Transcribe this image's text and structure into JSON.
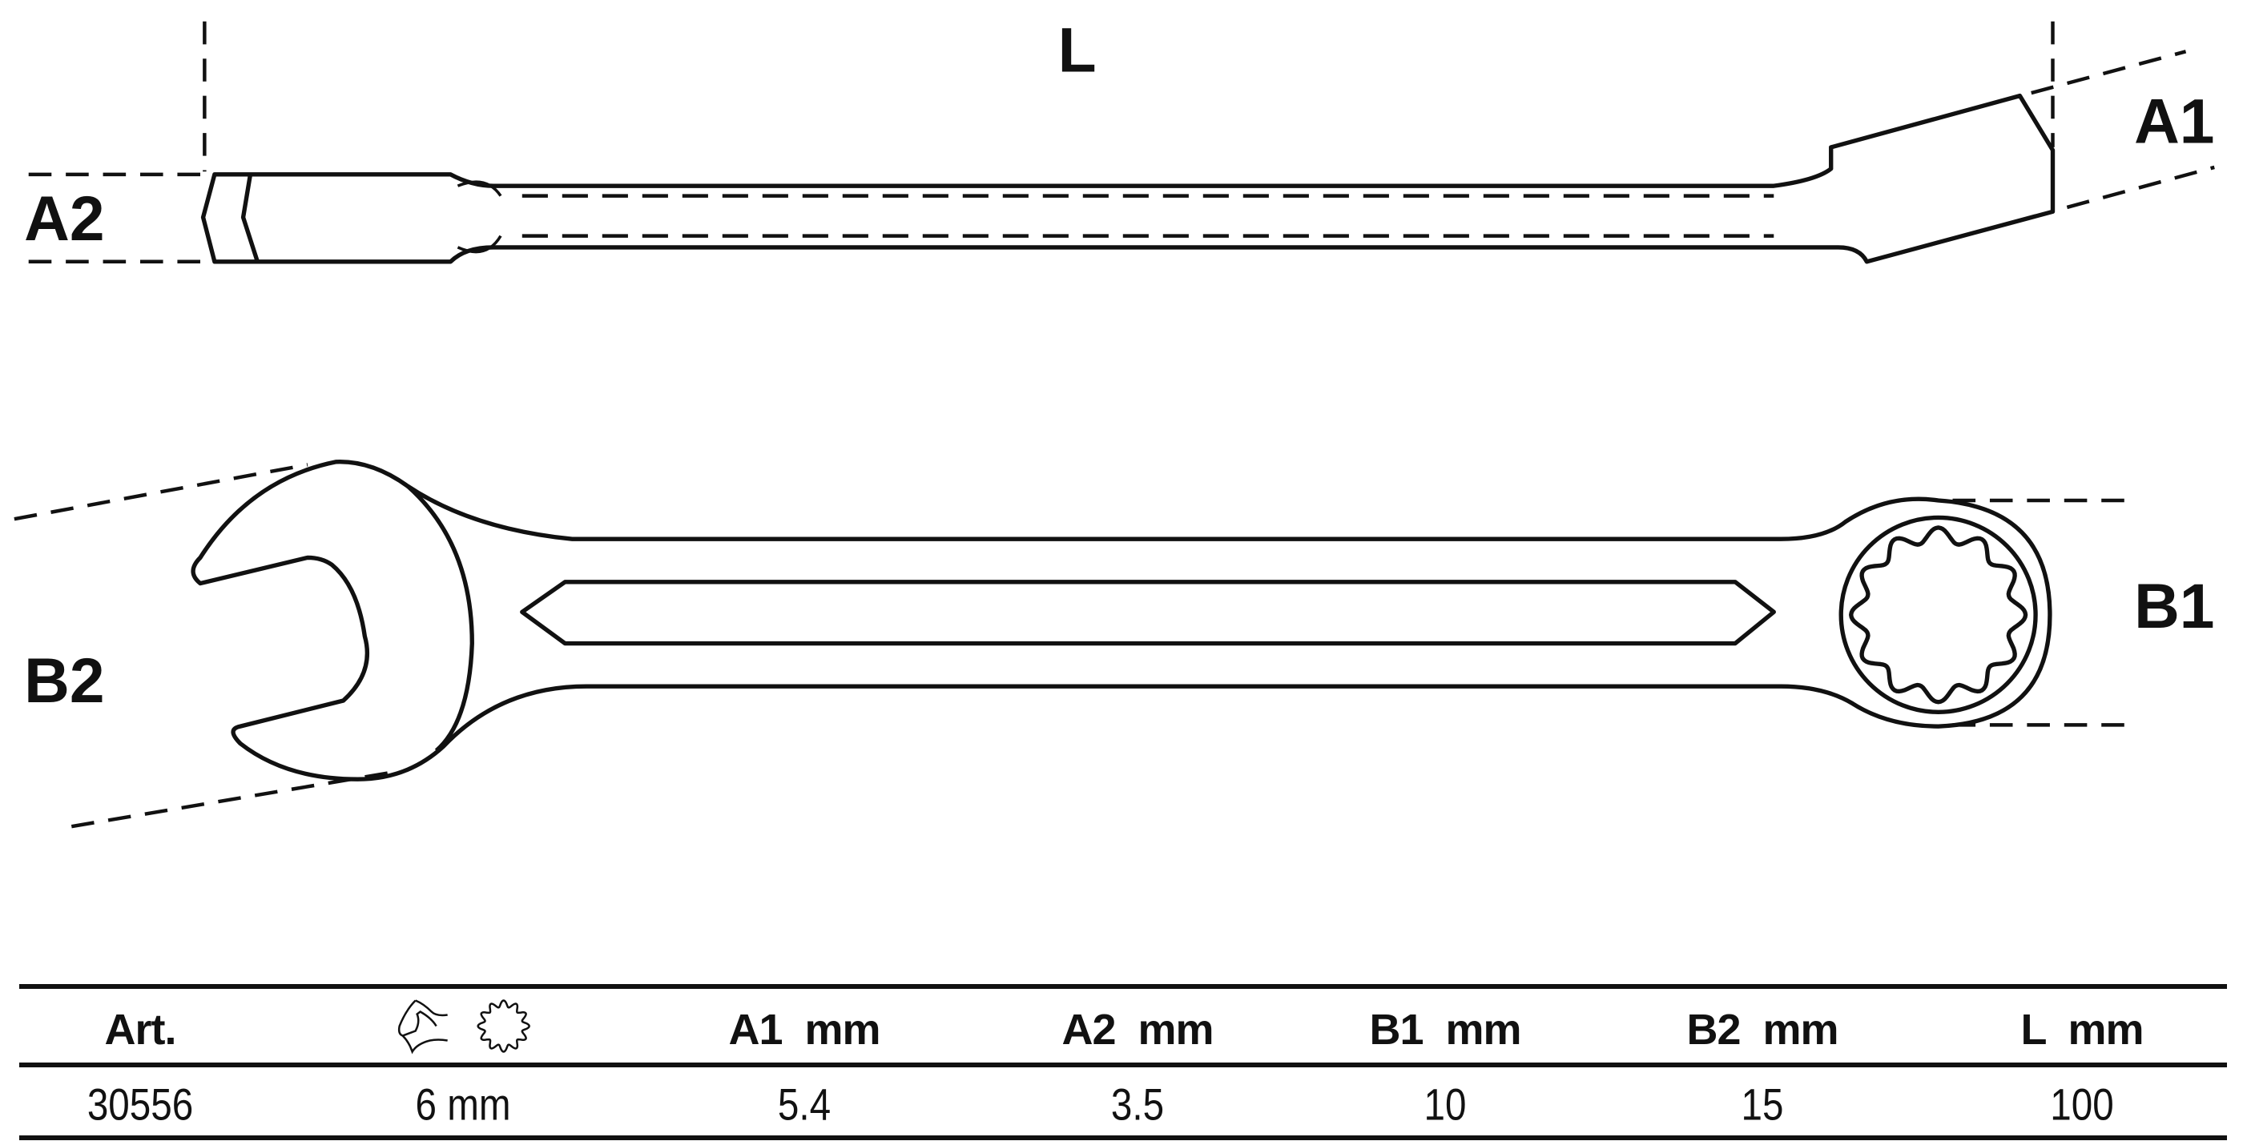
{
  "drawing": {
    "labels": {
      "L": "L",
      "A1": "A1",
      "A2": "A2",
      "B1": "B1",
      "B2": "B2"
    },
    "stroke_color": "#111111"
  },
  "table": {
    "headers": [
      "Art.",
      "",
      "A1  mm",
      "A2  mm",
      "B1  mm",
      "B2  mm",
      "L  mm"
    ],
    "header_icons": [
      "open-end-wrench-icon",
      "12-point-ring-icon"
    ],
    "rows": [
      [
        "30556",
        "6 mm",
        "5.4",
        "3.5",
        "10",
        "15",
        "100"
      ]
    ]
  }
}
